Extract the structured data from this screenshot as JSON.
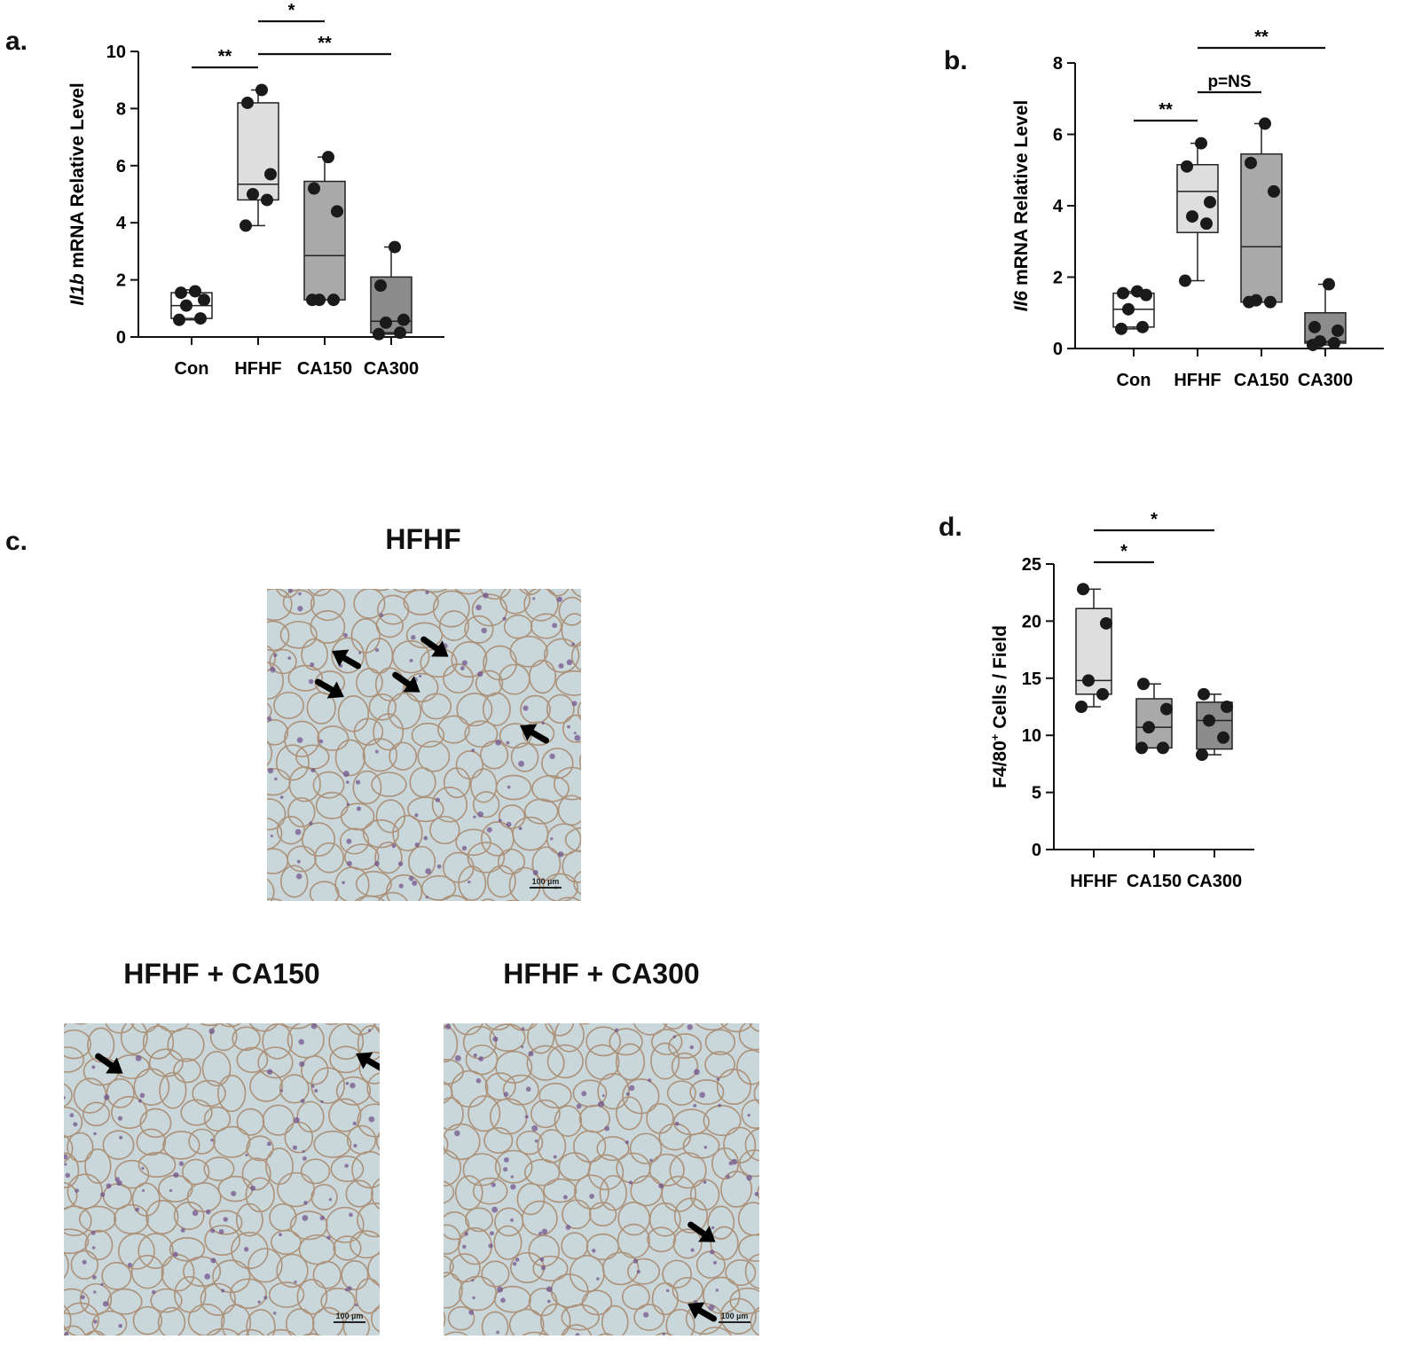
{
  "panels": {
    "a": {
      "label": "a."
    },
    "b": {
      "label": "b."
    },
    "c": {
      "label": "c.",
      "images": [
        {
          "title": "HFHF",
          "scale_label": "100 µm"
        },
        {
          "title": "HFHF + CA150",
          "scale_label": "100 µm"
        },
        {
          "title": "HFHF + CA300",
          "scale_label": "100 µm"
        }
      ]
    },
    "d": {
      "label": "d."
    }
  },
  "colors": {
    "box_con": "#ffffff",
    "box_hfhf": "#dedede",
    "box_ca150": "#a9a9a9",
    "box_ca300": "#8c8c8c",
    "tissue_bg": "#c9d6da",
    "membrane": "#a8876a",
    "nuclei": "#6e4f8a"
  },
  "chart_data": [
    {
      "id": "a",
      "type": "box",
      "ylabel_gene": "Il1b",
      "ylabel_rest": " mRNA Relative Level",
      "ylim": [
        0,
        10
      ],
      "yticks": [
        "0",
        "2",
        "4",
        "6",
        "8",
        "10"
      ],
      "categories": [
        "Con",
        "HFHF",
        "CA150",
        "CA300"
      ],
      "boxes": [
        {
          "min": 0.6,
          "q1": 0.65,
          "median": 1.1,
          "q3": 1.55,
          "max": 1.65,
          "points": [
            0.6,
            0.65,
            1.1,
            1.3,
            1.55,
            1.6
          ]
        },
        {
          "min": 3.9,
          "q1": 4.8,
          "median": 5.35,
          "q3": 8.2,
          "max": 8.65,
          "points": [
            3.9,
            4.8,
            5.0,
            5.7,
            8.2,
            8.65
          ]
        },
        {
          "min": 1.3,
          "q1": 1.3,
          "median": 2.85,
          "q3": 5.45,
          "max": 6.3,
          "points": [
            1.3,
            1.3,
            1.3,
            4.4,
            5.2,
            6.3
          ]
        },
        {
          "min": 0.1,
          "q1": 0.15,
          "median": 0.55,
          "q3": 2.1,
          "max": 3.15,
          "points": [
            0.1,
            0.15,
            0.5,
            0.6,
            1.8,
            3.15
          ]
        }
      ],
      "significance": [
        {
          "from": 0,
          "to": 1,
          "label": "**"
        },
        {
          "from": 1,
          "to": 2,
          "label": "*"
        },
        {
          "from": 1,
          "to": 3,
          "label": "**"
        }
      ]
    },
    {
      "id": "b",
      "type": "box",
      "ylabel_gene": "Il6",
      "ylabel_rest": " mRNA Relative Level",
      "ylim": [
        0,
        8
      ],
      "yticks": [
        "0",
        "2",
        "4",
        "6",
        "8"
      ],
      "categories": [
        "Con",
        "HFHF",
        "CA150",
        "CA300"
      ],
      "boxes": [
        {
          "min": 0.55,
          "q1": 0.6,
          "median": 1.1,
          "q3": 1.55,
          "max": 1.6,
          "points": [
            0.55,
            0.6,
            1.1,
            1.5,
            1.55,
            1.6
          ]
        },
        {
          "min": 1.9,
          "q1": 3.25,
          "median": 4.4,
          "q3": 5.15,
          "max": 5.75,
          "points": [
            1.9,
            3.5,
            3.7,
            4.1,
            5.1,
            5.75
          ]
        },
        {
          "min": 1.3,
          "q1": 1.3,
          "median": 2.85,
          "q3": 5.45,
          "max": 6.3,
          "points": [
            1.3,
            1.3,
            1.35,
            4.4,
            5.2,
            6.3
          ]
        },
        {
          "min": 0.1,
          "q1": 0.15,
          "median": 0.2,
          "q3": 1.0,
          "max": 1.8,
          "points": [
            0.1,
            0.15,
            0.2,
            0.5,
            0.6,
            1.8
          ]
        }
      ],
      "significance": [
        {
          "from": 0,
          "to": 1,
          "label": "**"
        },
        {
          "from": 1,
          "to": 2,
          "label": "p=NS"
        },
        {
          "from": 1,
          "to": 3,
          "label": "**"
        }
      ]
    },
    {
      "id": "d",
      "type": "box",
      "ylabel_main": "F4/80",
      "ylabel_sup": "+",
      "ylabel_rest": " Cells / Field",
      "ylim": [
        0,
        25
      ],
      "yticks": [
        "0",
        "5",
        "10",
        "15",
        "20",
        "25"
      ],
      "categories": [
        "HFHF",
        "CA150",
        "CA300"
      ],
      "boxes": [
        {
          "min": 12.5,
          "q1": 13.6,
          "median": 14.8,
          "q3": 21.1,
          "max": 22.8,
          "points": [
            12.5,
            13.6,
            14.8,
            19.8,
            22.8
          ]
        },
        {
          "min": 8.9,
          "q1": 8.9,
          "median": 10.7,
          "q3": 13.2,
          "max": 14.5,
          "points": [
            8.9,
            8.9,
            10.7,
            12.3,
            14.5
          ]
        },
        {
          "min": 8.3,
          "q1": 8.8,
          "median": 11.3,
          "q3": 12.9,
          "max": 13.6,
          "points": [
            8.3,
            9.8,
            11.3,
            12.5,
            13.6
          ]
        }
      ],
      "significance": [
        {
          "from": 0,
          "to": 1,
          "label": "*"
        },
        {
          "from": 0,
          "to": 2,
          "label": "*"
        }
      ]
    }
  ]
}
